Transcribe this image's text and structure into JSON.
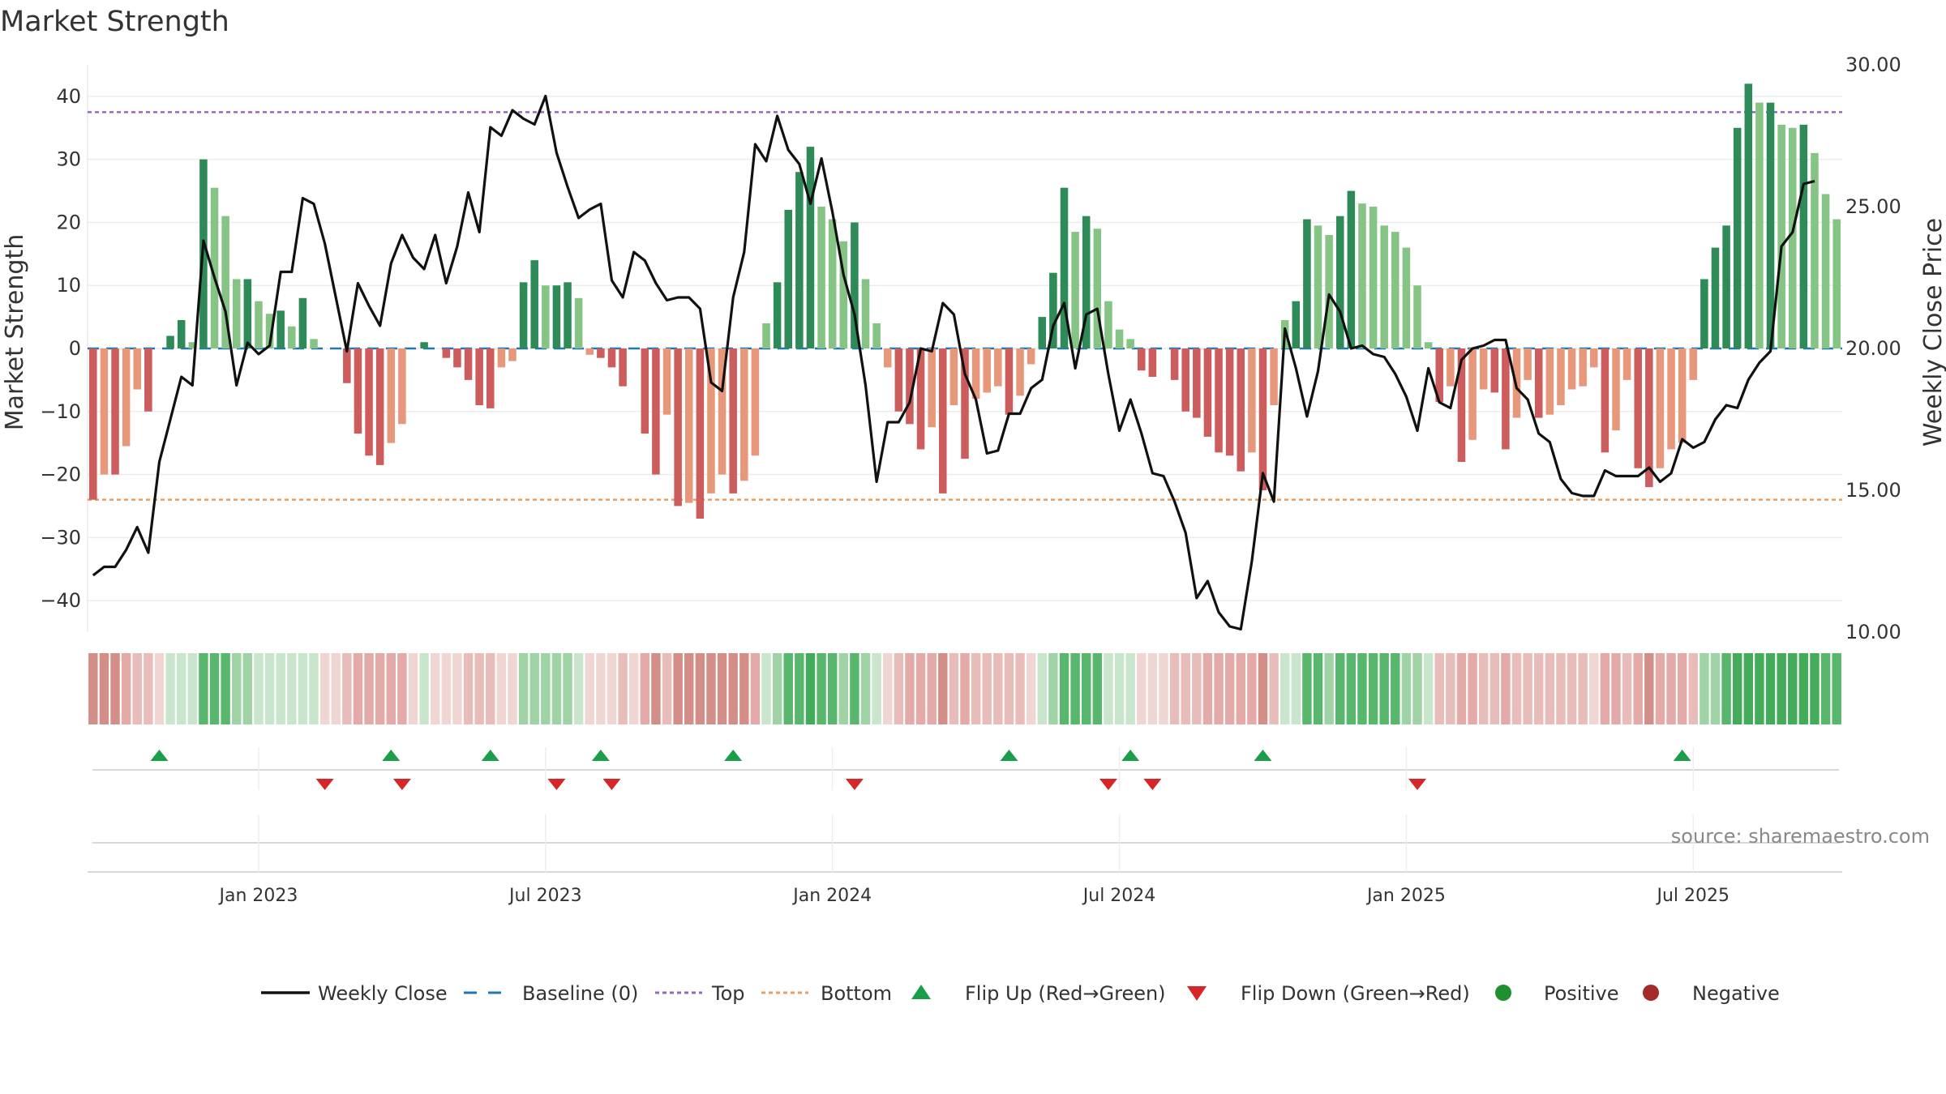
{
  "chart_data": {
    "type": "bar",
    "title": "Market Strength",
    "ylabel_left": "Market Strength",
    "ylabel_right": "Weekly Close Price",
    "left_ylim": [
      -45,
      45
    ],
    "right_ylim": [
      10,
      30
    ],
    "left_ticks": [
      40,
      30,
      20,
      10,
      0,
      -10,
      -20,
      -30,
      -40
    ],
    "left_tick_labels": [
      "40",
      "30",
      "20",
      "10",
      "0",
      "−10",
      "−20",
      "−30",
      "−40"
    ],
    "right_ticks": [
      30,
      25,
      20,
      15,
      10
    ],
    "right_tick_labels": [
      "30.00",
      "25.00",
      "20.00",
      "15.00",
      "10.00"
    ],
    "top_threshold": 37.5,
    "bottom_threshold": -24,
    "x_ticks": [
      {
        "week": 15,
        "label": "Jan 2023"
      },
      {
        "week": 41,
        "label": "Jul 2023"
      },
      {
        "week": 67,
        "label": "Jan 2024"
      },
      {
        "week": 93,
        "label": "Jul 2024"
      },
      {
        "week": 119,
        "label": "Jan 2025"
      },
      {
        "week": 145,
        "label": "Jul 2025"
      }
    ],
    "strength": [
      -24,
      -20,
      -20,
      -15.5,
      -6.5,
      -10,
      0,
      2,
      4.5,
      1,
      30,
      25.5,
      21,
      11,
      11,
      7.5,
      5.5,
      6,
      3.5,
      8,
      1.5,
      0,
      0,
      -5.5,
      -13.5,
      -17,
      -18.5,
      -15,
      -12,
      0,
      1,
      0,
      -1.5,
      -3,
      -5,
      -9,
      -9.5,
      -3,
      -2,
      10.5,
      14,
      10,
      10,
      10.5,
      8,
      -1,
      -1.5,
      -3,
      -6,
      0,
      -13.5,
      -20,
      -10.5,
      -25,
      -24.5,
      -27,
      -23,
      -20,
      -23,
      -21,
      -17,
      4,
      10.5,
      22,
      28,
      32,
      22.5,
      20.5,
      17,
      20,
      11,
      4,
      -3,
      -10,
      -12,
      -16,
      -12.5,
      -23,
      -9,
      -17.5,
      -8,
      -7,
      -6,
      -10.5,
      -7.5,
      -2.5,
      5,
      12,
      25.5,
      18.5,
      21,
      19,
      7.5,
      3,
      1.5,
      -3.5,
      -4.5,
      0,
      -5,
      -10,
      -11,
      -14,
      -16.5,
      -17,
      -19.5,
      -16.5,
      -22.5,
      -9,
      4.5,
      7.5,
      20.5,
      19.5,
      18,
      21,
      25,
      23,
      22.5,
      19.5,
      18.5,
      16,
      10,
      1,
      -8.5,
      -6,
      -18,
      -14.5,
      -6.5,
      -7,
      -16,
      -11,
      -5,
      -11,
      -10.5,
      -9,
      -6.5,
      -6,
      -3,
      -16.5,
      -13,
      -5,
      -19,
      -22,
      -19,
      -16,
      -15,
      -5,
      11,
      16,
      19.5,
      35,
      42,
      39,
      39,
      35.5,
      35,
      35.5,
      31,
      24.5,
      20.5
    ],
    "weekly_close": [
      12,
      12.3,
      12.3,
      12.9,
      13.7,
      12.8,
      16,
      17.5,
      19,
      18.7,
      23.8,
      22.5,
      21.3,
      18.7,
      20.2,
      19.8,
      20.1,
      22.7,
      22.7,
      25.3,
      25.1,
      23.7,
      21.8,
      19.9,
      22.3,
      21.5,
      20.8,
      23,
      24,
      23.2,
      22.8,
      24,
      22.3,
      23.6,
      25.5,
      24.1,
      27.8,
      27.5,
      28.4,
      28.1,
      27.9,
      28.9,
      26.9,
      25.7,
      24.6,
      24.9,
      25.1,
      22.4,
      21.8,
      23.4,
      23.1,
      22.3,
      21.7,
      21.8,
      21.8,
      21.4,
      18.8,
      18.5,
      21.8,
      23.4,
      27.2,
      26.6,
      28.2,
      27,
      26.5,
      25.1,
      26.7,
      24.8,
      22.6,
      21.2,
      18.7,
      15.3,
      17.4,
      17.4,
      18.1,
      20,
      19.9,
      21.6,
      21.2,
      19.1,
      18.2,
      16.3,
      16.4,
      17.7,
      17.7,
      18.6,
      18.9,
      20.8,
      21.6,
      19.3,
      21.2,
      21.4,
      19.1,
      17.1,
      18.2,
      17,
      15.6,
      15.5,
      14.6,
      13.5,
      11.2,
      11.8,
      10.7,
      10.2,
      10.1,
      12.5,
      15.6,
      14.6,
      20.7,
      19.3,
      17.6,
      19.2,
      21.9,
      21.3,
      20,
      20.1,
      19.8,
      19.7,
      19.1,
      18.3,
      17.1,
      19.3,
      18.1,
      17.9,
      19.6,
      20,
      20.1,
      20.3,
      20.3,
      18.6,
      18.2,
      17,
      16.7,
      15.4,
      14.9,
      14.8,
      14.8,
      15.7,
      15.5,
      15.5,
      15.5,
      15.8,
      15.3,
      15.6,
      16.8,
      16.5,
      16.7,
      17.5,
      18,
      17.9,
      18.9,
      19.5,
      19.9,
      23.6,
      24.1,
      25.8,
      25.9
    ],
    "flip_up_weeks": [
      6,
      27,
      36,
      46,
      58,
      83,
      94,
      106,
      144
    ],
    "flip_down_weeks": [
      21,
      28,
      42,
      47,
      69,
      92,
      96,
      120
    ],
    "zone_shades": [
      "#e3aaa7",
      "#e8bcb9",
      "#f0d6d3",
      "#c9e6cd",
      "#9fd3a6",
      "#7cc489",
      "#dca09b",
      "#d38e88",
      "#59b66d",
      "#44ab5b"
    ],
    "colors": {
      "pos_strong": "#2e8b57",
      "pos_weak": "#86c485",
      "neg_strong": "#cd5c5c",
      "neg_weak": "#e8987a",
      "close_line": "#111111",
      "baseline": "#1f77b4",
      "top_line": "#9467bd",
      "bottom_line": "#e69f62",
      "flip_up": "#1a9e4a",
      "flip_down": "#d62728",
      "positive_dot": "#1f8f2f",
      "negative_dot": "#a52a2a"
    },
    "legend": [
      {
        "key": "weekly-close",
        "label": "Weekly Close"
      },
      {
        "key": "baseline",
        "label": "Baseline (0)"
      },
      {
        "key": "top",
        "label": "Top"
      },
      {
        "key": "bottom",
        "label": "Bottom"
      },
      {
        "key": "flip-up",
        "label": "Flip Up (Red→Green)"
      },
      {
        "key": "flip-down",
        "label": "Flip Down (Green→Red)"
      },
      {
        "key": "positive",
        "label": "Positive"
      },
      {
        "key": "negative",
        "label": "Negative"
      }
    ],
    "source": "source: sharemaestro.com"
  }
}
